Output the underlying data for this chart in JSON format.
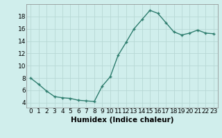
{
  "x": [
    0,
    1,
    2,
    3,
    4,
    5,
    6,
    7,
    8,
    9,
    10,
    11,
    12,
    13,
    14,
    15,
    16,
    17,
    18,
    19,
    20,
    21,
    22,
    23
  ],
  "y": [
    8.0,
    7.0,
    5.9,
    5.0,
    4.8,
    4.7,
    4.4,
    4.3,
    4.2,
    6.7,
    8.2,
    11.7,
    13.8,
    16.0,
    17.5,
    19.0,
    18.5,
    17.0,
    15.5,
    15.0,
    15.3,
    15.8,
    15.3,
    15.2
  ],
  "line_color": "#2e7d6e",
  "marker_color": "#2e7d6e",
  "bg_color": "#d0eeec",
  "grid_color": "#b8d8d5",
  "xlabel": "Humidex (Indice chaleur)",
  "xlim": [
    -0.5,
    23.5
  ],
  "ylim": [
    3.2,
    20
  ],
  "yticks": [
    4,
    6,
    8,
    10,
    12,
    14,
    16,
    18
  ],
  "xtick_labels": [
    "0",
    "1",
    "2",
    "3",
    "4",
    "5",
    "6",
    "7",
    "8",
    "9",
    "10",
    "11",
    "12",
    "13",
    "14",
    "15",
    "16",
    "17",
    "18",
    "19",
    "20",
    "21",
    "22",
    "23"
  ],
  "xlabel_fontsize": 7.5,
  "tick_fontsize": 6.5,
  "linewidth": 1.0,
  "markersize": 2.5
}
